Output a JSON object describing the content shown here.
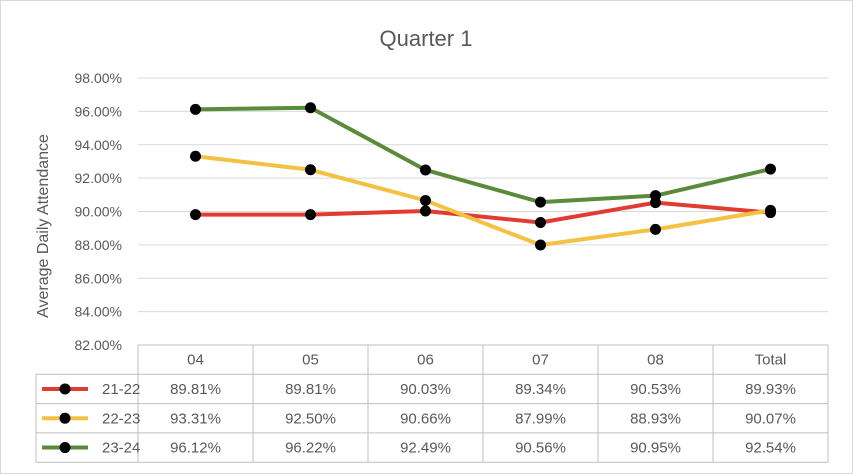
{
  "chart_data": {
    "type": "line",
    "title": "Quarter 1",
    "ylabel": "Average Daily Attendance",
    "xlabel": "",
    "categories": [
      "04",
      "05",
      "06",
      "07",
      "08",
      "Total"
    ],
    "ylim": [
      82,
      98
    ],
    "ystep": 2,
    "y_tick_labels": [
      "98.00%",
      "96.00%",
      "94.00%",
      "92.00%",
      "90.00%",
      "88.00%",
      "86.00%",
      "84.00%",
      "82.00%"
    ],
    "grid": true,
    "legend": "data-table",
    "series": [
      {
        "name": "21-22",
        "color": "#e03c31",
        "values": [
          89.81,
          89.81,
          90.03,
          89.34,
          90.53,
          89.93
        ],
        "labels": [
          "89.81%",
          "89.81%",
          "90.03%",
          "89.34%",
          "90.53%",
          "89.93%"
        ]
      },
      {
        "name": "22-23",
        "color": "#f4c242",
        "values": [
          93.31,
          92.5,
          90.66,
          87.99,
          88.93,
          90.07
        ],
        "labels": [
          "93.31%",
          "92.50%",
          "90.66%",
          "87.99%",
          "88.93%",
          "90.07%"
        ]
      },
      {
        "name": "23-24",
        "color": "#5a8a3a",
        "values": [
          96.12,
          96.22,
          92.49,
          90.56,
          90.95,
          92.54
        ],
        "labels": [
          "96.12%",
          "96.22%",
          "92.49%",
          "90.56%",
          "90.95%",
          "92.54%"
        ]
      }
    ]
  }
}
